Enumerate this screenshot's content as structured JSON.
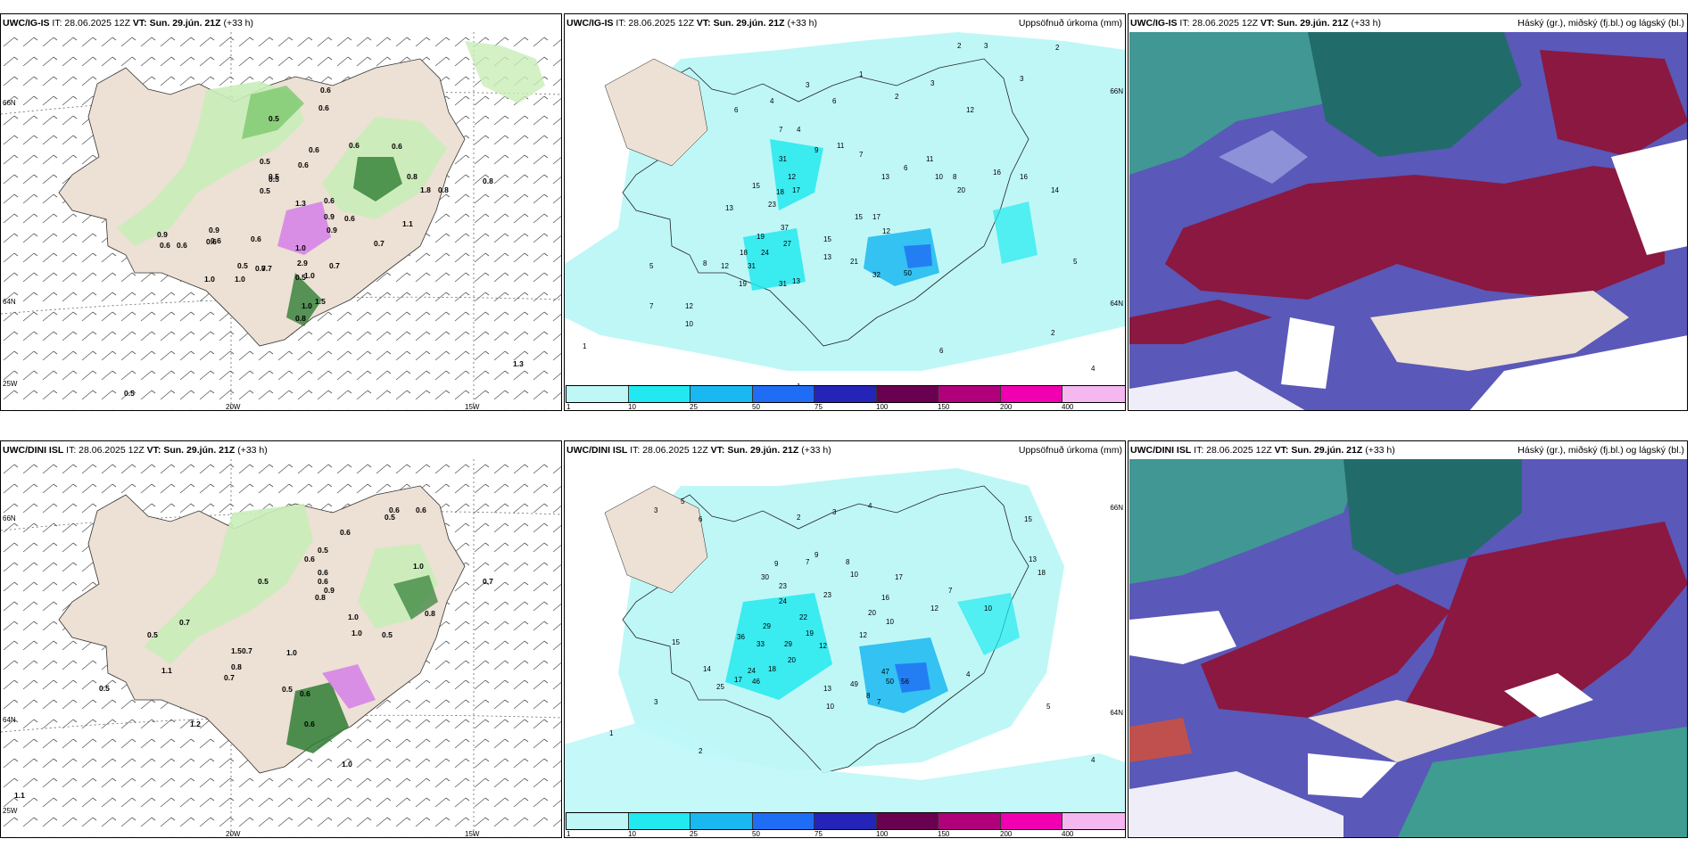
{
  "panels": [
    {
      "model": "UWC/IG-IS",
      "run": "IT: 28.06.2025 12Z",
      "vt_label": "VT:",
      "vt": "Sun. 29.jún. 21Z",
      "lead": "(+33 h)",
      "right_title": ""
    },
    {
      "model": "UWC/IG-IS",
      "run": "IT: 28.06.2025 12Z",
      "vt_label": "VT:",
      "vt": "Sun. 29.jún. 21Z",
      "lead": "(+33 h)",
      "right_title": "Uppsöfnuð úrkoma (mm)"
    },
    {
      "model": "UWC/IG-IS",
      "run": "IT: 28.06.2025 12Z",
      "vt_label": "VT:",
      "vt": "Sun. 29.jún. 21Z",
      "lead": "(+33 h)",
      "right_title": "Háský (gr.), miðský (fj.bl.) og lágský (bl.)"
    },
    {
      "model": "UWC/DINI ISL",
      "run": "IT: 28.06.2025 12Z",
      "vt_label": "VT:",
      "vt": "Sun. 29.jún. 21Z",
      "lead": "(+33 h)",
      "right_title": ""
    },
    {
      "model": "UWC/DINI ISL",
      "run": "IT: 28.06.2025 12Z",
      "vt_label": "VT:",
      "vt": "Sun. 29.jún. 21Z",
      "lead": "(+33 h)",
      "right_title": "Uppsöfnuð úrkoma (mm)"
    },
    {
      "model": "UWC/DINI ISL",
      "run": "IT: 28.06.2025 12Z",
      "vt_label": "VT:",
      "vt": "Sun. 29.jún. 21Z",
      "lead": "(+33 h)",
      "right_title": "Háský (gr.), miðský (fj.bl.) og lágský (bl.)"
    }
  ],
  "axis_labels": {
    "lat66": "66N",
    "lat64": "64N",
    "lon25": "25W",
    "lon20": "20W",
    "lon15": "15W"
  },
  "colorbar": {
    "ticks": [
      "1",
      "10",
      "25",
      "50",
      "75",
      "100",
      "150",
      "200",
      "400"
    ],
    "colors": [
      "#bff7f7",
      "#22e9ef",
      "#1ab8f0",
      "#1f6df5",
      "#2424b8",
      "#6a0050",
      "#b0007a",
      "#f000b0",
      "#f5b7ef"
    ]
  },
  "panel1_values": [
    "0.6",
    "0.5",
    "0.6",
    "0.5",
    "0.6",
    "0.6",
    "0.5",
    "0.5",
    "0.6",
    "0.6",
    "0.9",
    "0.6",
    "0.6",
    "0.5",
    "0.7",
    "0.9",
    "0.9",
    "0.6",
    "1.0",
    "0.6",
    "0.8",
    "1.1",
    "0.9",
    "0.6",
    "0.6",
    "0.5",
    "0.7",
    "1.0",
    "2.9",
    "1.0",
    "1.0",
    "1.0",
    "0.8",
    "1.3",
    "0.8",
    "1.5",
    "0.5",
    "0.7",
    "0.7",
    "0.6",
    "0.8",
    "1.3",
    "0.5",
    "1.8"
  ],
  "panel4_values": [
    "0.6",
    "0.6",
    "0.5",
    "0.6",
    "0.5",
    "0.6",
    "0.5",
    "0.6",
    "0.9",
    "0.8",
    "1.0",
    "0.6",
    "0.7",
    "0.5",
    "1.0",
    "0.7",
    "0.5",
    "1.1",
    "0.8",
    "1.5",
    "0.7",
    "0.5",
    "0.6",
    "1.0",
    "1.2",
    "1.0",
    "0.5",
    "1.0",
    "1.1",
    "0.7",
    "0.8",
    "0.6"
  ],
  "panel2_values": [
    "2",
    "3",
    "6",
    "4",
    "3",
    "6",
    "1",
    "2",
    "3",
    "12",
    "7",
    "4",
    "9",
    "11",
    "7",
    "31",
    "12",
    "15",
    "18",
    "17",
    "23",
    "13",
    "37",
    "19",
    "24",
    "27",
    "18",
    "12",
    "31",
    "19",
    "13",
    "31",
    "8",
    "15",
    "13",
    "21",
    "32",
    "50",
    "15",
    "17",
    "12",
    "13",
    "10",
    "6",
    "5",
    "7",
    "10",
    "12",
    "8",
    "11",
    "20",
    "16",
    "16",
    "14",
    "3",
    "2",
    "2",
    "1",
    "5",
    "4",
    "1",
    "6"
  ],
  "panel5_values": [
    "3",
    "5",
    "6",
    "2",
    "3",
    "4",
    "9",
    "8",
    "9",
    "7",
    "10",
    "23",
    "24",
    "30",
    "22",
    "29",
    "36",
    "33",
    "29",
    "19",
    "12",
    "20",
    "24",
    "18",
    "17",
    "46",
    "25",
    "14",
    "15",
    "12",
    "23",
    "16",
    "17",
    "20",
    "10",
    "13",
    "47",
    "50",
    "56",
    "8",
    "7",
    "49",
    "10",
    "3",
    "4",
    "5",
    "7",
    "10",
    "15",
    "18",
    "13",
    "12",
    "4",
    "2",
    "1"
  ]
}
